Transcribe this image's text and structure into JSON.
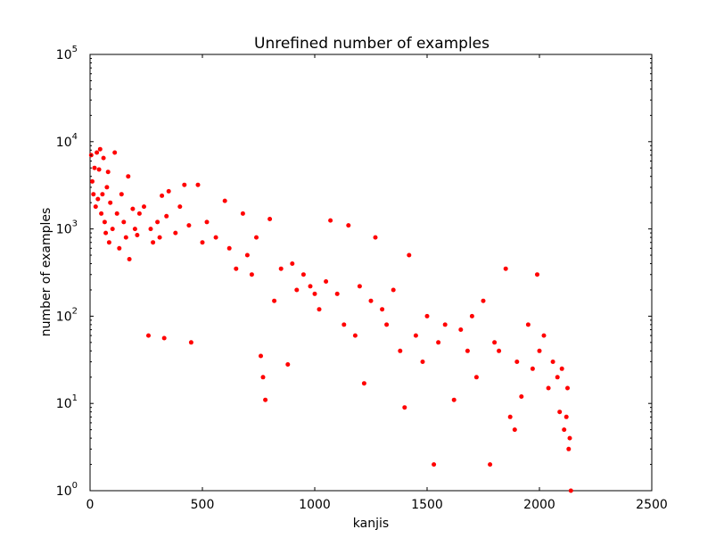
{
  "chart_data": {
    "type": "scatter",
    "title": "Unrefined number of examples",
    "xlabel": "kanjis",
    "ylabel": "number of examples",
    "xlim": [
      0,
      2500
    ],
    "ylim": [
      1,
      100000
    ],
    "yscale": "log",
    "grid": false,
    "legend": "none",
    "point_color": "#ff0000",
    "x_ticks": [
      0,
      500,
      1000,
      1500,
      2000,
      2500
    ],
    "x_tick_labels": [
      "0",
      "500",
      "1000",
      "1500",
      "2000",
      "2500"
    ],
    "y_ticks": [
      1,
      10,
      100,
      1000,
      10000,
      100000
    ],
    "y_tick_labels": [
      {
        "base": "10",
        "exp": "0"
      },
      {
        "base": "10",
        "exp": "1"
      },
      {
        "base": "10",
        "exp": "2"
      },
      {
        "base": "10",
        "exp": "3"
      },
      {
        "base": "10",
        "exp": "4"
      },
      {
        "base": "10",
        "exp": "5"
      }
    ],
    "series": [
      {
        "points": [
          [
            5,
            7000
          ],
          [
            10,
            3500
          ],
          [
            15,
            2500
          ],
          [
            20,
            5000
          ],
          [
            25,
            1800
          ],
          [
            30,
            7500
          ],
          [
            35,
            2200
          ],
          [
            40,
            4800
          ],
          [
            45,
            8200
          ],
          [
            50,
            1500
          ],
          [
            55,
            2500
          ],
          [
            60,
            6500
          ],
          [
            65,
            1200
          ],
          [
            70,
            900
          ],
          [
            75,
            3000
          ],
          [
            80,
            4500
          ],
          [
            85,
            700
          ],
          [
            90,
            2000
          ],
          [
            100,
            1000
          ],
          [
            110,
            7500
          ],
          [
            120,
            1500
          ],
          [
            130,
            600
          ],
          [
            140,
            2500
          ],
          [
            150,
            1200
          ],
          [
            160,
            800
          ],
          [
            170,
            4000
          ],
          [
            175,
            450
          ],
          [
            190,
            1700
          ],
          [
            200,
            1000
          ],
          [
            210,
            850
          ],
          [
            220,
            1500
          ],
          [
            240,
            1800
          ],
          [
            260,
            60
          ],
          [
            270,
            1000
          ],
          [
            280,
            700
          ],
          [
            300,
            1200
          ],
          [
            310,
            800
          ],
          [
            320,
            2400
          ],
          [
            330,
            56
          ],
          [
            340,
            1400
          ],
          [
            350,
            2700
          ],
          [
            380,
            900
          ],
          [
            400,
            1800
          ],
          [
            420,
            3200
          ],
          [
            440,
            1100
          ],
          [
            450,
            50
          ],
          [
            480,
            3200
          ],
          [
            500,
            700
          ],
          [
            520,
            1200
          ],
          [
            560,
            800
          ],
          [
            600,
            2100
          ],
          [
            620,
            600
          ],
          [
            650,
            350
          ],
          [
            680,
            1500
          ],
          [
            700,
            500
          ],
          [
            720,
            300
          ],
          [
            740,
            800
          ],
          [
            760,
            35
          ],
          [
            770,
            20
          ],
          [
            780,
            11
          ],
          [
            800,
            1300
          ],
          [
            820,
            150
          ],
          [
            850,
            350
          ],
          [
            880,
            28
          ],
          [
            900,
            400
          ],
          [
            920,
            200
          ],
          [
            950,
            300
          ],
          [
            980,
            220
          ],
          [
            1000,
            180
          ],
          [
            1020,
            120
          ],
          [
            1050,
            250
          ],
          [
            1070,
            1250
          ],
          [
            1100,
            180
          ],
          [
            1130,
            80
          ],
          [
            1150,
            1100
          ],
          [
            1180,
            60
          ],
          [
            1200,
            220
          ],
          [
            1220,
            17
          ],
          [
            1250,
            150
          ],
          [
            1270,
            800
          ],
          [
            1300,
            120
          ],
          [
            1320,
            80
          ],
          [
            1350,
            200
          ],
          [
            1380,
            40
          ],
          [
            1400,
            9
          ],
          [
            1420,
            500
          ],
          [
            1450,
            60
          ],
          [
            1480,
            30
          ],
          [
            1500,
            100
          ],
          [
            1530,
            2
          ],
          [
            1550,
            50
          ],
          [
            1580,
            80
          ],
          [
            1620,
            11
          ],
          [
            1650,
            70
          ],
          [
            1680,
            40
          ],
          [
            1700,
            100
          ],
          [
            1720,
            20
          ],
          [
            1750,
            150
          ],
          [
            1780,
            2
          ],
          [
            1800,
            50
          ],
          [
            1820,
            40
          ],
          [
            1850,
            350
          ],
          [
            1870,
            7
          ],
          [
            1890,
            5
          ],
          [
            1900,
            30
          ],
          [
            1920,
            12
          ],
          [
            1950,
            80
          ],
          [
            1970,
            25
          ],
          [
            1990,
            300
          ],
          [
            2000,
            40
          ],
          [
            2020,
            60
          ],
          [
            2040,
            15
          ],
          [
            2060,
            30
          ],
          [
            2080,
            20
          ],
          [
            2090,
            8
          ],
          [
            2100,
            25
          ],
          [
            2110,
            5
          ],
          [
            2120,
            7
          ],
          [
            2125,
            15
          ],
          [
            2130,
            3
          ],
          [
            2135,
            4
          ],
          [
            2140,
            1
          ]
        ]
      }
    ]
  }
}
